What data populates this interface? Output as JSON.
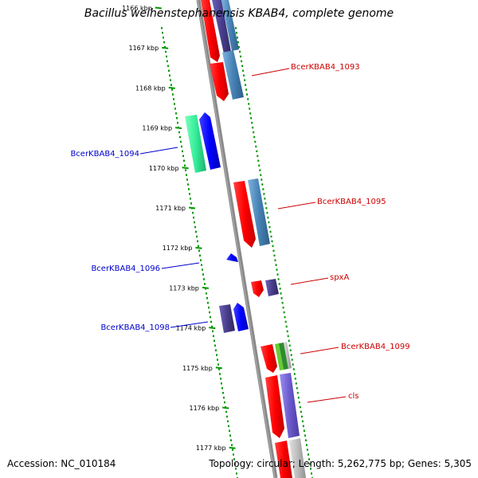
{
  "title": "Bacillus weihenstephanensis KBAB4, complete genome",
  "footer": {
    "accession": "Accession: NC_010184",
    "summary": "Topology: circular; Length: 5,262,775 bp; Genes: 5,305"
  },
  "kbp_ticks": [
    "1166 kbp",
    "1167 kbp",
    "1168 kbp",
    "1169 kbp",
    "1170 kbp",
    "1171 kbp",
    "1172 kbp",
    "1173 kbp",
    "1174 kbp",
    "1175 kbp",
    "1176 kbp",
    "1177 kbp"
  ],
  "gene_labels": [
    {
      "text": "BcerKBAB4_1093",
      "strand": "forward",
      "color": "#cc0000"
    },
    {
      "text": "BcerKBAB4_1094",
      "strand": "reverse",
      "color": "#0000cc"
    },
    {
      "text": "BcerKBAB4_1095",
      "strand": "forward",
      "color": "#cc0000"
    },
    {
      "text": "BcerKBAB4_1096",
      "strand": "reverse",
      "color": "#0000cc"
    },
    {
      "text": "spxA",
      "strand": "forward",
      "color": "#cc0000"
    },
    {
      "text": "BcerKBAB4_1098",
      "strand": "reverse",
      "color": "#0000cc"
    },
    {
      "text": "BcerKBAB4_1099",
      "strand": "forward",
      "color": "#cc0000"
    },
    {
      "text": "cls",
      "strand": "forward",
      "color": "#cc0000"
    }
  ],
  "colors": {
    "backbone": "#808080",
    "tick": "#009900",
    "cds": "#ff0000",
    "reverse_cds": "#0000ff",
    "gene_steel": "#4682b4",
    "gene_slate": "#483d8b",
    "gene_cyan": "#33ff99",
    "gene_green": "#33aa33",
    "gene_purple": "#6a5acd"
  }
}
